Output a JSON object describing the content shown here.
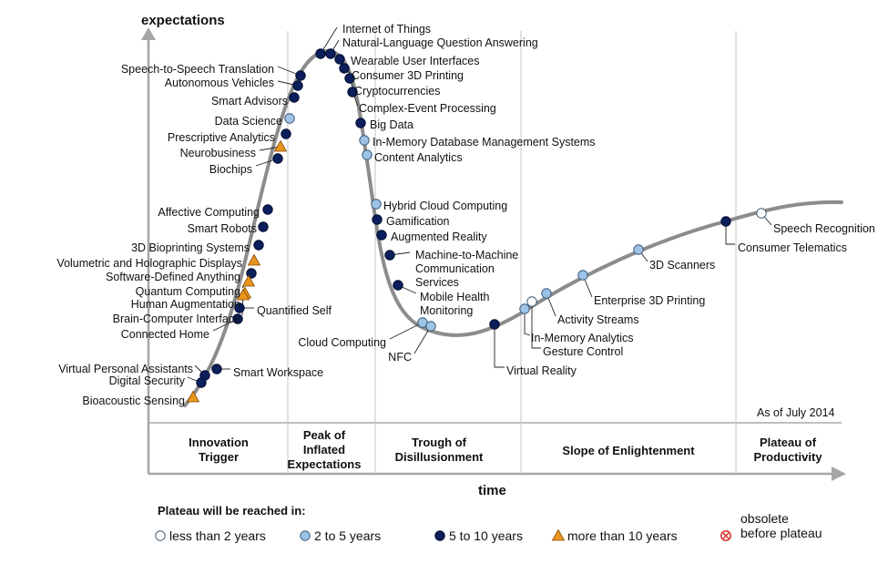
{
  "axes": {
    "y_label": "expectations",
    "x_label": "time"
  },
  "as_of": "As of July 2014",
  "phases": [
    [
      "Innovation",
      "Trigger"
    ],
    [
      "Peak of",
      "Inflated",
      "Expectations"
    ],
    [
      "Trough of",
      "Disillusionment"
    ],
    [
      "Slope of Enlightenment"
    ],
    [
      "Plateau of",
      "Productivity"
    ]
  ],
  "legend": {
    "title": "Plateau will be reached in:",
    "items": [
      {
        "key": "lt2",
        "label": "less than 2 years",
        "fill": "#ffffff",
        "shape": "circle"
      },
      {
        "key": "2to5",
        "label": "2 to 5 years",
        "fill": "#9dc3e6",
        "shape": "circle"
      },
      {
        "key": "5to10",
        "label": "5 to 10 years",
        "fill": "#0b1f5c",
        "shape": "circle"
      },
      {
        "key": "gt10",
        "label": "more than 10 years",
        "fill": "#e8961e",
        "shape": "triangle"
      },
      {
        "key": "obsolete",
        "label": [
          "obsolete",
          "before plateau"
        ],
        "fill": "#d8322d",
        "shape": "crossed-circle"
      }
    ]
  },
  "curve_color": "#8c8c8c",
  "technologies": [
    {
      "name": "Internet of Things",
      "cat": "5to10"
    },
    {
      "name": "Natural-Language Question Answering",
      "cat": "5to10"
    },
    {
      "name": "Wearable User Interfaces",
      "cat": "5to10"
    },
    {
      "name": "Consumer 3D Printing",
      "cat": "5to10"
    },
    {
      "name": "Cryptocurrencies",
      "cat": "5to10"
    },
    {
      "name": "Complex-Event Processing",
      "cat": "5to10"
    },
    {
      "name": "Big Data",
      "cat": "5to10"
    },
    {
      "name": "In-Memory Database Management Systems",
      "cat": "2to5"
    },
    {
      "name": "Content Analytics",
      "cat": "2to5"
    },
    {
      "name": "Hybrid Cloud Computing",
      "cat": "2to5"
    },
    {
      "name": "Gamification",
      "cat": "5to10"
    },
    {
      "name": "Augmented Reality",
      "cat": "5to10"
    },
    {
      "name": [
        "Machine-to-Machine",
        "Communication",
        "Services"
      ],
      "cat": "5to10"
    },
    {
      "name": [
        "Mobile Health",
        "Monitoring"
      ],
      "cat": "5to10"
    },
    {
      "name": "Cloud Computing",
      "cat": "2to5"
    },
    {
      "name": "NFC",
      "cat": "2to5"
    },
    {
      "name": "Virtual Reality",
      "cat": "5to10"
    },
    {
      "name": "Gesture Control",
      "cat": "lt2"
    },
    {
      "name": "In-Memory Analytics",
      "cat": "2to5"
    },
    {
      "name": "Activity  Streams",
      "cat": "2to5"
    },
    {
      "name": "Enterprise 3D Printing",
      "cat": "2to5"
    },
    {
      "name": "3D Scanners",
      "cat": "2to5"
    },
    {
      "name": "Consumer Telematics",
      "cat": "5to10"
    },
    {
      "name": "Speech Recognition",
      "cat": "lt2"
    },
    {
      "name": "Speech-to-Speech Translation",
      "cat": "5to10"
    },
    {
      "name": "Autonomous Vehicles",
      "cat": "5to10"
    },
    {
      "name": "Smart Advisors",
      "cat": "5to10"
    },
    {
      "name": "Data Science",
      "cat": "2to5"
    },
    {
      "name": "Prescriptive Analytics",
      "cat": "5to10"
    },
    {
      "name": "Neurobusiness",
      "cat": "gt10"
    },
    {
      "name": "Biochips",
      "cat": "5to10"
    },
    {
      "name": "Affective  Computing",
      "cat": "5to10"
    },
    {
      "name": "Smart Robots",
      "cat": "5to10"
    },
    {
      "name": "3D Bioprinting Systems",
      "cat": "5to10"
    },
    {
      "name": "Volumetric and Holographic Displays",
      "cat": "gt10"
    },
    {
      "name": "Software-Defined Anything",
      "cat": "5to10"
    },
    {
      "name": "Quantum Computing",
      "cat": "gt10"
    },
    {
      "name": "Human Augmentation",
      "cat": "gt10"
    },
    {
      "name": "Brain-Computer Interface",
      "cat": "gt10"
    },
    {
      "name": "Quantified Self",
      "cat": "5to10"
    },
    {
      "name": "Connected Home",
      "cat": "5to10"
    },
    {
      "name": "Smart Workspace",
      "cat": "5to10"
    },
    {
      "name": "Virtual Personal Assistants",
      "cat": "5to10"
    },
    {
      "name": "Digital Security",
      "cat": "5to10"
    },
    {
      "name": "Bioacoustic Sensing",
      "cat": "gt10"
    }
  ]
}
